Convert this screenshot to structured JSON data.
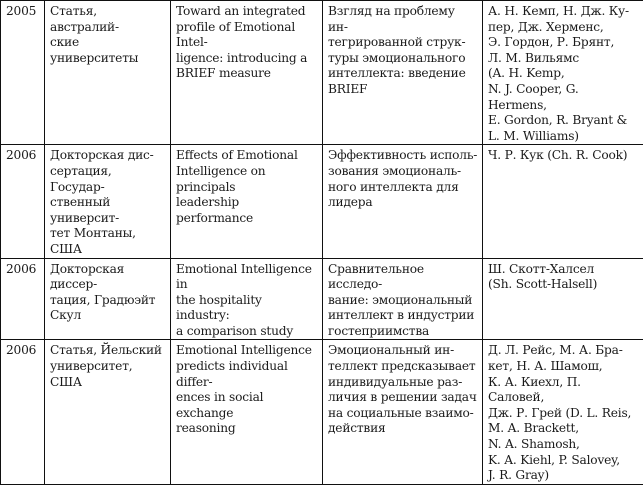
{
  "table": {
    "rows": [
      {
        "year": "2005",
        "source": "Статья, австралий-\nские университеты",
        "title_en": "Toward an integrated\nprofile of Emotional Intel-\nligence: introducing a\nBRIEF measure",
        "title_ru": "Взгляд на проблему ин-\nтегрированной струк-\nтуры эмоционального\nинтеллекта: введение\nBRIEF",
        "authors": "А. Н. Кемп, Н. Дж. Ку-\nпер, Дж. Херменс,\nЭ. Гордон, Р. Брянт,\nЛ. М. Вильямс\n(A. H. Kemp,\nN. J. Cooper, G. Hermens,\nE. Gordon, R. Bryant  &\nL. M. Williams)"
      },
      {
        "year": "2006",
        "source": "Докторская дис-\nсертация, Государ-\nственный университ-\nтет Монтаны, США",
        "title_en": "Effects of Emotional\nIntelligence on principals\nleadership performance",
        "title_ru": "Эффективность исполь-\nзования эмоциональ-\nного интеллекта для\nлидера",
        "authors": "Ч. Р. Кук (Ch. R. Cook)"
      },
      {
        "year": "2006",
        "source": "Докторская диссер-\nтация, Градюэйт\nСкул",
        "title_en": "Emotional Intelligence in\nthe hospitality industry:\na comparison study",
        "title_ru": "Сравнительное исследо-\nвание: эмоциональный\nинтеллект в индустрии\nгостеприимства",
        "authors": "Ш. Скотт-Халсел\n(Sh. Scott-Halsell)"
      },
      {
        "year": "2006",
        "source": "Статья, Йельский\nуниверситет, США",
        "title_en": "Emotional Intelligence\npredicts individual differ-\nences in social exchange\nreasoning",
        "title_ru": "Эмоциональный ин-\nтеллект предсказывает\nиндивидуальные раз-\nличия в решении задач\nна социальные взаимо-\nдействия",
        "authors": "Д. Л. Рейс, М. А. Бра-\nкет, Н. А. Шамош,\nК. А. Киехл, П. Саловей,\nДж. Р. Грей (D. L. Reis,\nM. A. Brackett,\nN. A. Shamosh,\nK. A. Kiehl, P. Salovey,\nJ. R. Gray)"
      }
    ]
  }
}
